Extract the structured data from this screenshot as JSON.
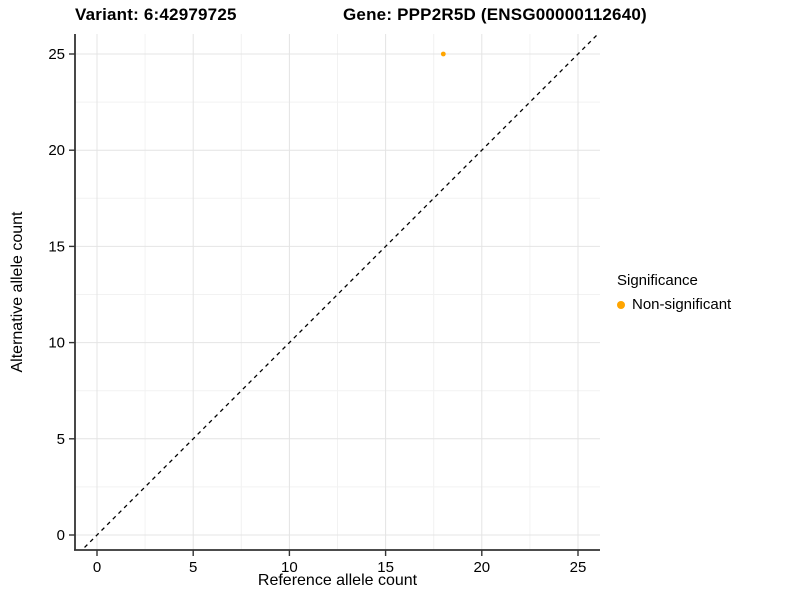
{
  "chart_data": {
    "type": "scatter",
    "titles": [
      "Variant: 6:42979725",
      "Gene: PPP2R5D (ENSG00000112640)"
    ],
    "xlabel": "Reference allele count",
    "ylabel": "Alternative allele count",
    "xticks": [
      0,
      5,
      10,
      15,
      20,
      25
    ],
    "yticks": [
      0,
      5,
      10,
      15,
      20,
      25
    ],
    "xlim": [
      -1.15,
      26.15
    ],
    "ylim": [
      -1.15,
      26.15
    ],
    "grid": "major and minor gridlines, light gray on white panel",
    "points": [
      {
        "x": 18,
        "y": 25,
        "series": "Non-significant",
        "color": "#FFA500"
      }
    ],
    "reference_line": {
      "slope": 1,
      "intercept": 0,
      "style": "dashed",
      "color": "#000000"
    },
    "legend": {
      "position": "right",
      "title": "Significance",
      "items": [
        {
          "label": "Non-significant",
          "color": "#FFA500",
          "marker": "circle"
        }
      ]
    },
    "colors": {
      "background": "#FFFFFF",
      "grid_major": "#E4E4E4",
      "grid_minor": "#F2F2F2",
      "axis": "#333333",
      "text": "#000000",
      "point": "#FFA500"
    }
  }
}
